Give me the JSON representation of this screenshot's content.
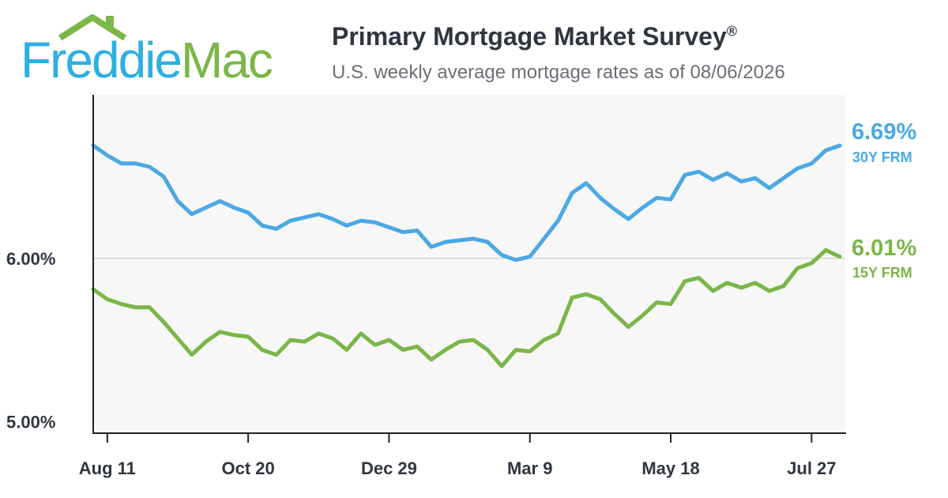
{
  "brand": {
    "name_part1": "Freddie",
    "name_part2": "Mac",
    "color_blue": "#2eaee3",
    "color_green": "#7ab648"
  },
  "header": {
    "title": "Primary Mortgage Market Survey",
    "title_mark": "®",
    "subtitle": "U.S. weekly average mortgage rates as of 08/06/2026"
  },
  "chart_data": {
    "type": "line",
    "x_ticks": [
      "Aug 11",
      "Oct 20",
      "Dec 29",
      "Mar 9",
      "May 18",
      "Jul 27"
    ],
    "x_tick_index": [
      1,
      11,
      21,
      31,
      41,
      51
    ],
    "y_ticks": [
      "6.00%",
      "5.00%"
    ],
    "y_tick_values": [
      6.0,
      5.0
    ],
    "ylim": [
      4.93,
      7.0
    ],
    "gridlines": [
      6.0
    ],
    "series": [
      {
        "name": "30Y FRM",
        "color": "#4ba8e4",
        "end_label": "6.69%",
        "values": [
          6.69,
          6.63,
          6.58,
          6.58,
          6.56,
          6.5,
          6.35,
          6.27,
          6.31,
          6.35,
          6.31,
          6.28,
          6.2,
          6.18,
          6.23,
          6.25,
          6.27,
          6.24,
          6.2,
          6.23,
          6.22,
          6.19,
          6.16,
          6.17,
          6.07,
          6.1,
          6.11,
          6.12,
          6.1,
          6.02,
          5.99,
          6.01,
          6.12,
          6.23,
          6.4,
          6.46,
          6.37,
          6.3,
          6.24,
          6.31,
          6.37,
          6.36,
          6.51,
          6.53,
          6.48,
          6.52,
          6.47,
          6.49,
          6.43,
          6.49,
          6.55,
          6.58,
          6.66,
          6.69
        ]
      },
      {
        "name": "15Y FRM",
        "color": "#7ab648",
        "end_label": "6.01%",
        "values": [
          5.81,
          5.75,
          5.72,
          5.7,
          5.7,
          5.61,
          5.51,
          5.41,
          5.49,
          5.55,
          5.53,
          5.52,
          5.44,
          5.41,
          5.5,
          5.49,
          5.54,
          5.51,
          5.44,
          5.54,
          5.47,
          5.5,
          5.44,
          5.46,
          5.38,
          5.44,
          5.49,
          5.5,
          5.44,
          5.34,
          5.44,
          5.43,
          5.5,
          5.54,
          5.76,
          5.78,
          5.75,
          5.66,
          5.58,
          5.65,
          5.73,
          5.72,
          5.86,
          5.88,
          5.8,
          5.85,
          5.82,
          5.85,
          5.8,
          5.83,
          5.94,
          5.97,
          6.05,
          6.01
        ]
      }
    ]
  }
}
